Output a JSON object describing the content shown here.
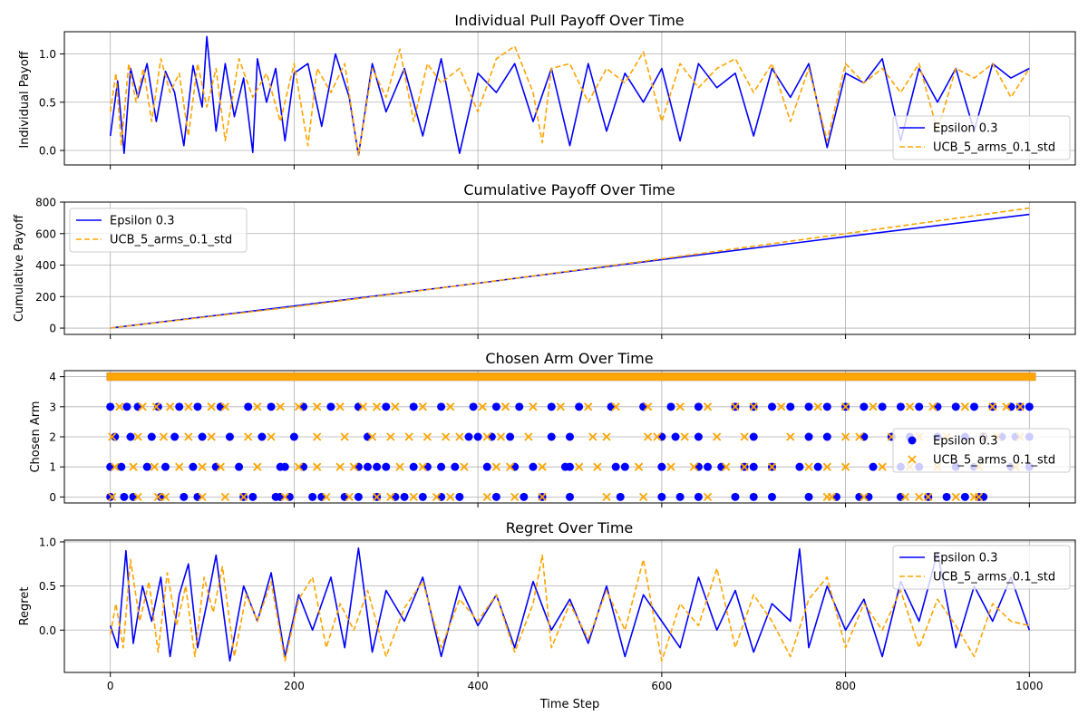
{
  "figure": {
    "xlabel": "Time Step",
    "xlim": [
      -50,
      1050
    ],
    "x_ticks": [
      0,
      200,
      400,
      600,
      800,
      1000
    ],
    "x_tick_labels": [
      "0",
      "200",
      "400",
      "600",
      "800",
      "1000"
    ],
    "grid": true
  },
  "series_styles": {
    "epsilon": {
      "label": "Epsilon 0.3",
      "color": "#0000ff",
      "line_style": "solid",
      "marker": "circle"
    },
    "ucb": {
      "label": "UCB_5_arms_0.1_std",
      "color": "#ffa500",
      "line_style": "dashed",
      "marker": "x"
    }
  },
  "chart_data": [
    {
      "type": "line",
      "title": "Individual Pull Payoff Over Time",
      "xlabel": "",
      "ylabel": "Individual Payoff",
      "ylim": [
        -0.15,
        1.23
      ],
      "y_ticks": [
        0.0,
        0.5,
        1.0
      ],
      "y_tick_labels": [
        "0.0",
        "0.5",
        "1.0"
      ],
      "grid": true,
      "legend_position": "lower-right",
      "note": "Noisy per-step series over 1001 steps; values are a representative sample of the visible range.",
      "series": [
        {
          "name": "Epsilon 0.3",
          "x": [
            0,
            8,
            15,
            22,
            30,
            40,
            50,
            60,
            70,
            80,
            90,
            100,
            105,
            115,
            125,
            135,
            145,
            155,
            160,
            170,
            180,
            190,
            200,
            215,
            230,
            245,
            260,
            270,
            285,
            300,
            320,
            340,
            360,
            380,
            400,
            420,
            440,
            460,
            480,
            500,
            520,
            540,
            560,
            580,
            600,
            620,
            640,
            660,
            680,
            700,
            720,
            740,
            760,
            780,
            800,
            820,
            840,
            860,
            880,
            900,
            920,
            940,
            960,
            980,
            1000
          ],
          "values": [
            0.15,
            0.72,
            -0.03,
            0.85,
            0.55,
            0.9,
            0.3,
            0.82,
            0.6,
            0.05,
            0.88,
            0.45,
            1.18,
            0.2,
            0.9,
            0.35,
            0.75,
            -0.02,
            0.95,
            0.5,
            0.85,
            0.1,
            0.8,
            0.9,
            0.25,
            1.0,
            0.55,
            -0.05,
            0.9,
            0.4,
            0.85,
            0.15,
            0.95,
            -0.03,
            0.8,
            0.6,
            0.9,
            0.3,
            0.85,
            0.05,
            0.9,
            0.2,
            0.8,
            0.5,
            0.85,
            0.1,
            0.9,
            0.65,
            0.8,
            0.15,
            0.85,
            0.55,
            0.9,
            0.03,
            0.8,
            0.7,
            0.95,
            0.1,
            0.85,
            0.5,
            0.85,
            0.2,
            0.9,
            0.75,
            0.85
          ]
        },
        {
          "name": "UCB_5_arms_0.1_std",
          "x": [
            0,
            6,
            12,
            20,
            28,
            36,
            45,
            55,
            65,
            75,
            85,
            95,
            105,
            115,
            125,
            140,
            155,
            170,
            185,
            200,
            215,
            225,
            240,
            255,
            270,
            285,
            300,
            315,
            330,
            345,
            360,
            380,
            400,
            420,
            440,
            460,
            470,
            480,
            500,
            520,
            540,
            560,
            580,
            600,
            620,
            640,
            660,
            680,
            700,
            720,
            740,
            760,
            780,
            800,
            820,
            840,
            860,
            880,
            900,
            920,
            940,
            960,
            980,
            1000
          ],
          "values": [
            0.4,
            0.8,
            0.05,
            0.9,
            0.5,
            0.85,
            0.3,
            0.95,
            0.6,
            0.8,
            0.15,
            0.9,
            0.45,
            0.85,
            0.1,
            0.95,
            0.55,
            0.8,
            0.3,
            0.9,
            0.05,
            0.85,
            0.6,
            0.9,
            -0.05,
            0.85,
            0.55,
            1.05,
            0.3,
            0.9,
            0.7,
            0.85,
            0.4,
            0.95,
            1.08,
            0.6,
            0.08,
            0.85,
            0.9,
            0.5,
            0.85,
            0.7,
            1.02,
            0.3,
            0.9,
            0.65,
            0.85,
            0.95,
            0.6,
            0.9,
            0.3,
            0.85,
            0.1,
            0.9,
            0.7,
            0.85,
            0.6,
            0.9,
            0.2,
            0.85,
            0.75,
            0.9,
            0.55,
            0.85
          ]
        }
      ]
    },
    {
      "type": "line",
      "title": "Cumulative Payoff Over Time",
      "xlabel": "",
      "ylabel": "Cumulative Payoff",
      "ylim": [
        -40,
        800
      ],
      "y_ticks": [
        0,
        200,
        400,
        600,
        800
      ],
      "y_tick_labels": [
        "0",
        "200",
        "400",
        "600",
        "800"
      ],
      "grid": true,
      "legend_position": "upper-left",
      "series": [
        {
          "name": "Epsilon 0.3",
          "x": [
            0,
            200,
            400,
            600,
            800,
            1000
          ],
          "values": [
            0,
            140,
            285,
            435,
            580,
            722
          ]
        },
        {
          "name": "UCB_5_arms_0.1_std",
          "x": [
            0,
            200,
            400,
            600,
            800,
            1000
          ],
          "values": [
            0,
            135,
            285,
            440,
            600,
            762
          ]
        }
      ]
    },
    {
      "type": "scatter",
      "title": "Chosen Arm Over Time",
      "xlabel": "",
      "ylabel": "Chosen Arm",
      "ylim": [
        -0.2,
        4.2
      ],
      "y_ticks": [
        0,
        1,
        2,
        3,
        4
      ],
      "y_tick_labels": [
        "0",
        "1",
        "2",
        "3",
        "4"
      ],
      "grid": true,
      "legend_position": "center-right",
      "note": "Arm 4 is chosen at almost every step by both policies; markers along y=4 form a continuous band from x=0 to x=1000.",
      "band": {
        "y": 4,
        "x_start": 0,
        "x_end": 1003
      },
      "series": [
        {
          "name": "Epsilon 0.3",
          "x_arm3": [
            0,
            18,
            30,
            52,
            75,
            95,
            120,
            150,
            175,
            210,
            240,
            270,
            300,
            330,
            360,
            395,
            420,
            445,
            480,
            510,
            545,
            580,
            610,
            640,
            680,
            700,
            720,
            740,
            760,
            780,
            800,
            820,
            840,
            860,
            880,
            900,
            920,
            940,
            960,
            980,
            990,
            1000
          ],
          "x_arm2": [
            5,
            22,
            45,
            70,
            100,
            130,
            165,
            200,
            280,
            390,
            400,
            415,
            435,
            480,
            500,
            600,
            615,
            640,
            700,
            760,
            780,
            820,
            850,
            870,
            900,
            930,
            950,
            970,
            985,
            1000
          ],
          "x_arm1": [
            0,
            12,
            40,
            60,
            90,
            115,
            140,
            185,
            190,
            210,
            270,
            280,
            290,
            300,
            330,
            345,
            360,
            375,
            410,
            440,
            460,
            495,
            500,
            550,
            560,
            600,
            640,
            650,
            665,
            690,
            700,
            720,
            750,
            770,
            830,
            860,
            880,
            920,
            940,
            980,
            1000
          ],
          "x_arm0": [
            0,
            15,
            25,
            55,
            80,
            95,
            145,
            155,
            180,
            185,
            195,
            220,
            230,
            255,
            270,
            290,
            310,
            320,
            340,
            360,
            380,
            420,
            450,
            470,
            500,
            555,
            600,
            620,
            640,
            680,
            700,
            720,
            760,
            790,
            815,
            825,
            860,
            890,
            910,
            930,
            945,
            950
          ]
        },
        {
          "name": "UCB_5_arms_0.1_std",
          "x_arm3": [
            10,
            35,
            50,
            65,
            85,
            110,
            125,
            160,
            185,
            205,
            225,
            250,
            275,
            290,
            310,
            340,
            370,
            405,
            430,
            460,
            490,
            520,
            550,
            585,
            620,
            650,
            680,
            700,
            730,
            770,
            800,
            830,
            870,
            895,
            930,
            960,
            975,
            990
          ],
          "x_arm2": [
            2,
            30,
            58,
            85,
            110,
            150,
            175,
            225,
            255,
            285,
            305,
            325,
            345,
            365,
            380,
            410,
            425,
            455,
            525,
            540,
            585,
            595,
            625,
            660,
            690,
            740,
            800,
            815,
            850,
            880,
            910,
            950,
            965,
            990
          ],
          "x_arm1": [
            5,
            25,
            48,
            75,
            100,
            120,
            160,
            205,
            225,
            250,
            265,
            315,
            340,
            385,
            420,
            435,
            470,
            510,
            530,
            575,
            610,
            635,
            670,
            690,
            720,
            760,
            780,
            800,
            840,
            870,
            900,
            945,
            985
          ],
          "x_arm0": [
            2,
            30,
            52,
            60,
            100,
            125,
            145,
            190,
            235,
            260,
            290,
            305,
            330,
            355,
            370,
            410,
            440,
            470,
            540,
            580,
            650,
            780,
            785,
            820,
            865,
            880,
            890,
            920,
            940,
            945
          ]
        }
      ]
    },
    {
      "type": "line",
      "title": "Regret Over Time",
      "xlabel": "Time Step",
      "ylabel": "Regret",
      "ylim": [
        -0.48,
        1.02
      ],
      "y_ticks": [
        0.0,
        0.5,
        1.0
      ],
      "y_tick_labels": [
        "0.0",
        "0.5",
        "1.0"
      ],
      "grid": true,
      "legend_position": "upper-right",
      "note": "Noisy per-step series over 1001 steps; values are a representative sample of the visible range.",
      "series": [
        {
          "name": "Epsilon 0.3",
          "x": [
            0,
            8,
            17,
            25,
            35,
            45,
            55,
            65,
            75,
            85,
            95,
            105,
            115,
            130,
            145,
            160,
            175,
            190,
            205,
            220,
            240,
            255,
            270,
            285,
            300,
            320,
            340,
            360,
            380,
            400,
            420,
            440,
            460,
            480,
            500,
            520,
            540,
            560,
            580,
            600,
            620,
            640,
            660,
            680,
            700,
            720,
            740,
            750,
            760,
            780,
            800,
            820,
            840,
            860,
            880,
            900,
            920,
            940,
            960,
            980,
            1000
          ],
          "values": [
            0.05,
            -0.2,
            0.9,
            -0.15,
            0.5,
            0.1,
            0.6,
            -0.3,
            0.4,
            0.75,
            -0.2,
            0.3,
            0.85,
            -0.35,
            0.5,
            0.1,
            0.65,
            -0.3,
            0.4,
            0.0,
            0.6,
            -0.2,
            0.93,
            -0.25,
            0.45,
            0.1,
            0.6,
            -0.3,
            0.5,
            0.05,
            0.4,
            -0.2,
            0.55,
            0.0,
            0.35,
            -0.15,
            0.5,
            -0.3,
            0.4,
            0.1,
            -0.2,
            0.6,
            0.0,
            0.45,
            -0.25,
            0.3,
            0.1,
            0.92,
            -0.2,
            0.5,
            0.0,
            0.35,
            -0.3,
            0.55,
            0.1,
            0.88,
            -0.2,
            0.5,
            0.1,
            0.6,
            0.0
          ]
        },
        {
          "name": "UCB_5_arms_0.1_std",
          "x": [
            0,
            6,
            14,
            22,
            32,
            42,
            52,
            62,
            72,
            82,
            92,
            102,
            112,
            122,
            135,
            148,
            160,
            175,
            190,
            205,
            220,
            235,
            250,
            265,
            280,
            300,
            320,
            340,
            360,
            380,
            400,
            420,
            440,
            460,
            470,
            480,
            500,
            520,
            540,
            560,
            580,
            600,
            620,
            640,
            660,
            680,
            700,
            720,
            740,
            760,
            780,
            800,
            820,
            840,
            860,
            880,
            900,
            920,
            940,
            960,
            980,
            1000
          ],
          "values": [
            -0.05,
            0.3,
            -0.2,
            0.8,
            0.1,
            0.55,
            -0.25,
            0.65,
            0.05,
            0.5,
            -0.3,
            0.6,
            0.2,
            0.72,
            -0.3,
            0.4,
            0.1,
            0.55,
            -0.35,
            0.35,
            0.6,
            -0.2,
            0.3,
            0.0,
            0.45,
            -0.3,
            0.25,
            0.55,
            -0.2,
            0.35,
            0.1,
            0.4,
            -0.25,
            0.3,
            0.85,
            -0.2,
            0.3,
            -0.1,
            0.45,
            0.0,
            0.8,
            -0.35,
            0.3,
            0.05,
            0.7,
            -0.2,
            0.4,
            0.1,
            -0.3,
            0.35,
            0.6,
            -0.2,
            0.3,
            0.0,
            0.45,
            -0.2,
            0.35,
            0.05,
            -0.3,
            0.3,
            0.1,
            0.05
          ]
        }
      ]
    }
  ]
}
